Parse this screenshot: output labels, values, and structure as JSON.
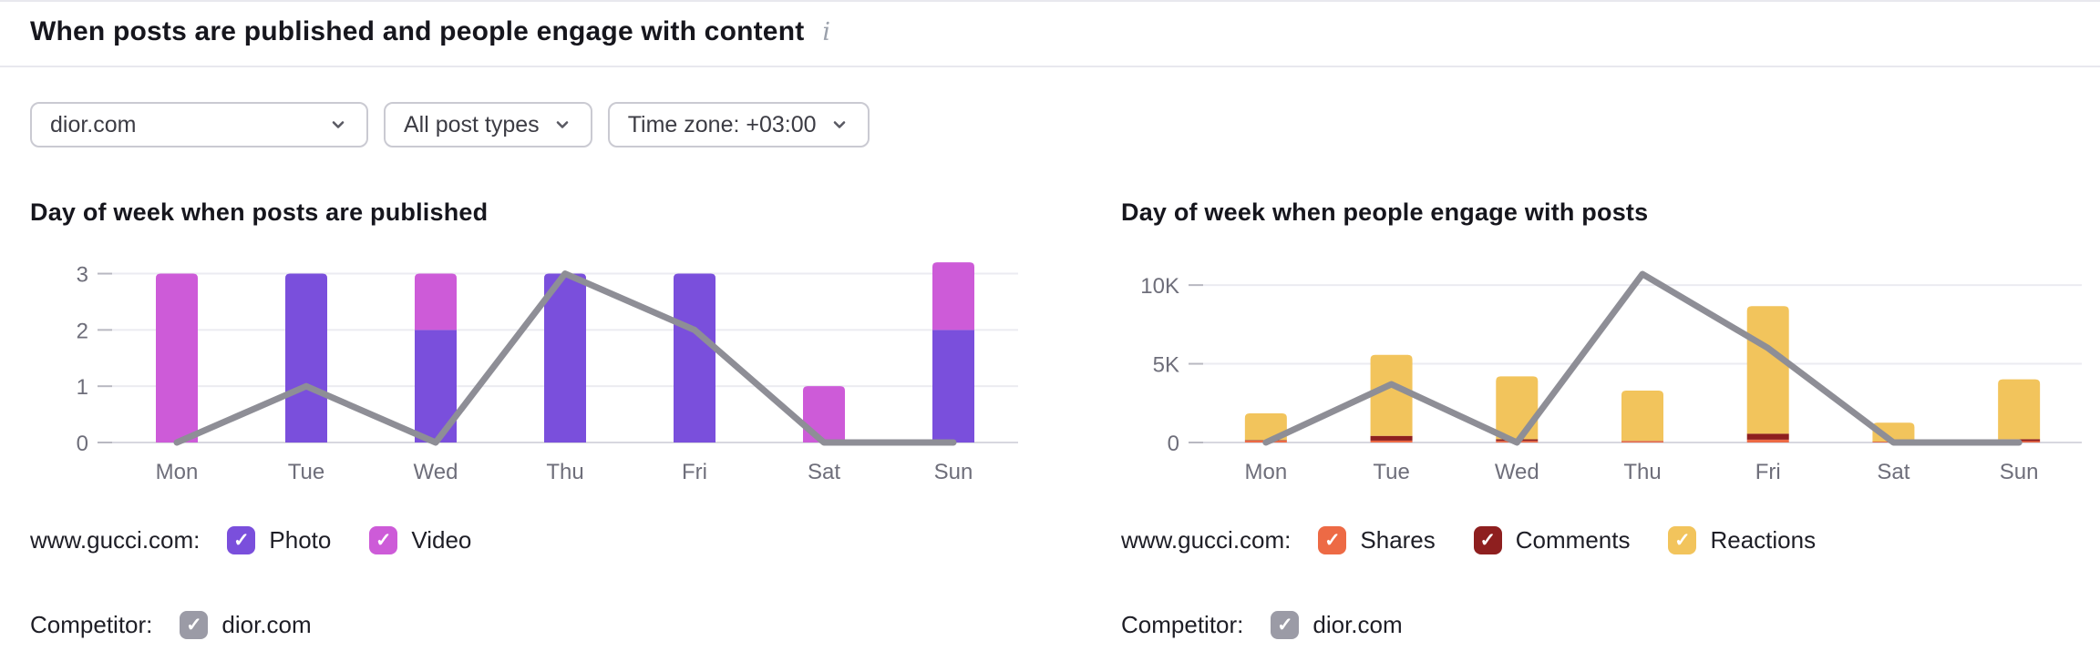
{
  "header": {
    "title": "When posts are published and people engage with content"
  },
  "filters": {
    "profile": "dior.com",
    "post_types": "All post types",
    "time_zone": "Time zone: +03:00"
  },
  "chart_data": [
    {
      "type": "bar",
      "stacked": true,
      "title": "Day of week when posts are published",
      "categories": [
        "Mon",
        "Tue",
        "Wed",
        "Thu",
        "Fri",
        "Sat",
        "Sun"
      ],
      "series": [
        {
          "name": "Photo",
          "color": "#7a4fdc",
          "values": [
            0,
            3,
            2,
            3,
            3,
            0,
            2
          ]
        },
        {
          "name": "Video",
          "color": "#cd5bd8",
          "values": [
            3,
            0,
            1,
            0,
            0,
            1,
            1.2
          ]
        }
      ],
      "line_series": {
        "name": "dior.com",
        "color": "#8e8e96",
        "values": [
          0,
          1,
          0,
          3,
          2,
          0,
          0
        ]
      },
      "yticks": [
        {
          "value": 0,
          "label": "0"
        },
        {
          "value": 1,
          "label": "1"
        },
        {
          "value": 2,
          "label": "2"
        },
        {
          "value": 3,
          "label": "3"
        }
      ],
      "ylim": [
        0,
        3.3
      ],
      "grid": true,
      "legend_position": "bottom",
      "xlabel": "",
      "ylabel": ""
    },
    {
      "type": "bar",
      "stacked": true,
      "title": "Day of week when people engage with posts",
      "categories": [
        "Mon",
        "Tue",
        "Wed",
        "Thu",
        "Fri",
        "Sat",
        "Sun"
      ],
      "series": [
        {
          "name": "Shares",
          "color": "#ed6a45",
          "values": [
            120,
            120,
            100,
            80,
            180,
            50,
            90
          ]
        },
        {
          "name": "Comments",
          "color": "#8e1f1f",
          "values": [
            30,
            300,
            100,
            20,
            380,
            10,
            120
          ]
        },
        {
          "name": "Reactions",
          "color": "#f2c45c",
          "values": [
            1700,
            5150,
            4000,
            3200,
            8100,
            1200,
            3800
          ]
        }
      ],
      "line_series": {
        "name": "dior.com",
        "color": "#8e8e96",
        "values": [
          0,
          3700,
          0,
          10700,
          6000,
          0,
          0
        ]
      },
      "yticks": [
        {
          "value": 0,
          "label": "0"
        },
        {
          "value": 5000,
          "label": "5K"
        },
        {
          "value": 10000,
          "label": "10K"
        }
      ],
      "ylim": [
        0,
        11800
      ],
      "grid": true,
      "legend_position": "bottom",
      "xlabel": "",
      "ylabel": ""
    }
  ],
  "legends": [
    {
      "owner_label": "www.gucci.com:",
      "items": [
        {
          "label": "Photo",
          "color": "#7a4fdc"
        },
        {
          "label": "Video",
          "color": "#cd5bd8"
        }
      ],
      "competitor_label": "Competitor:",
      "competitor": {
        "label": "dior.com",
        "color": "#9b9ba6"
      }
    },
    {
      "owner_label": "www.gucci.com:",
      "items": [
        {
          "label": "Shares",
          "color": "#ed6a45"
        },
        {
          "label": "Comments",
          "color": "#8e1f1f"
        },
        {
          "label": "Reactions",
          "color": "#f2c45c"
        }
      ],
      "competitor_label": "Competitor:",
      "competitor": {
        "label": "dior.com",
        "color": "#9b9ba6"
      }
    }
  ],
  "colors": {
    "line": "#8e8e96",
    "grid": "#ebebf1",
    "baseline": "#d7d7df",
    "tick_dash": "#b8b8c1"
  }
}
